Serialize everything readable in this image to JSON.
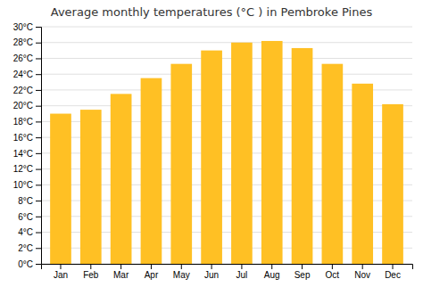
{
  "chart_data": {
    "type": "bar",
    "title": "Average monthly temperatures (°C ) in Pembroke Pines",
    "categories": [
      "Jan",
      "Feb",
      "Mar",
      "Apr",
      "May",
      "Jun",
      "Jul",
      "Aug",
      "Sep",
      "Oct",
      "Nov",
      "Dec"
    ],
    "values": [
      19.0,
      19.5,
      21.5,
      23.5,
      25.3,
      27.0,
      28.0,
      28.2,
      27.3,
      25.3,
      22.8,
      20.2
    ],
    "color": "#FFC024",
    "ylim": [
      0,
      30
    ],
    "yticks": [
      {
        "value": 0,
        "label": "0°C"
      },
      {
        "value": 2,
        "label": "2°C"
      },
      {
        "value": 4,
        "label": "4°C"
      },
      {
        "value": 6,
        "label": "6°C"
      },
      {
        "value": 8,
        "label": "8°C"
      },
      {
        "value": 10,
        "label": "10°C"
      },
      {
        "value": 12,
        "label": "12°C"
      },
      {
        "value": 14,
        "label": "14°C"
      },
      {
        "value": 16,
        "label": "16°C"
      },
      {
        "value": 18,
        "label": "18°C"
      },
      {
        "value": 20,
        "label": "20°C"
      },
      {
        "value": 22,
        "label": "22°C"
      },
      {
        "value": 24,
        "label": "24°C"
      },
      {
        "value": 26,
        "label": "26°C"
      },
      {
        "value": 28,
        "label": "28°C"
      },
      {
        "value": 30,
        "label": "30°C"
      }
    ],
    "grid": true
  }
}
